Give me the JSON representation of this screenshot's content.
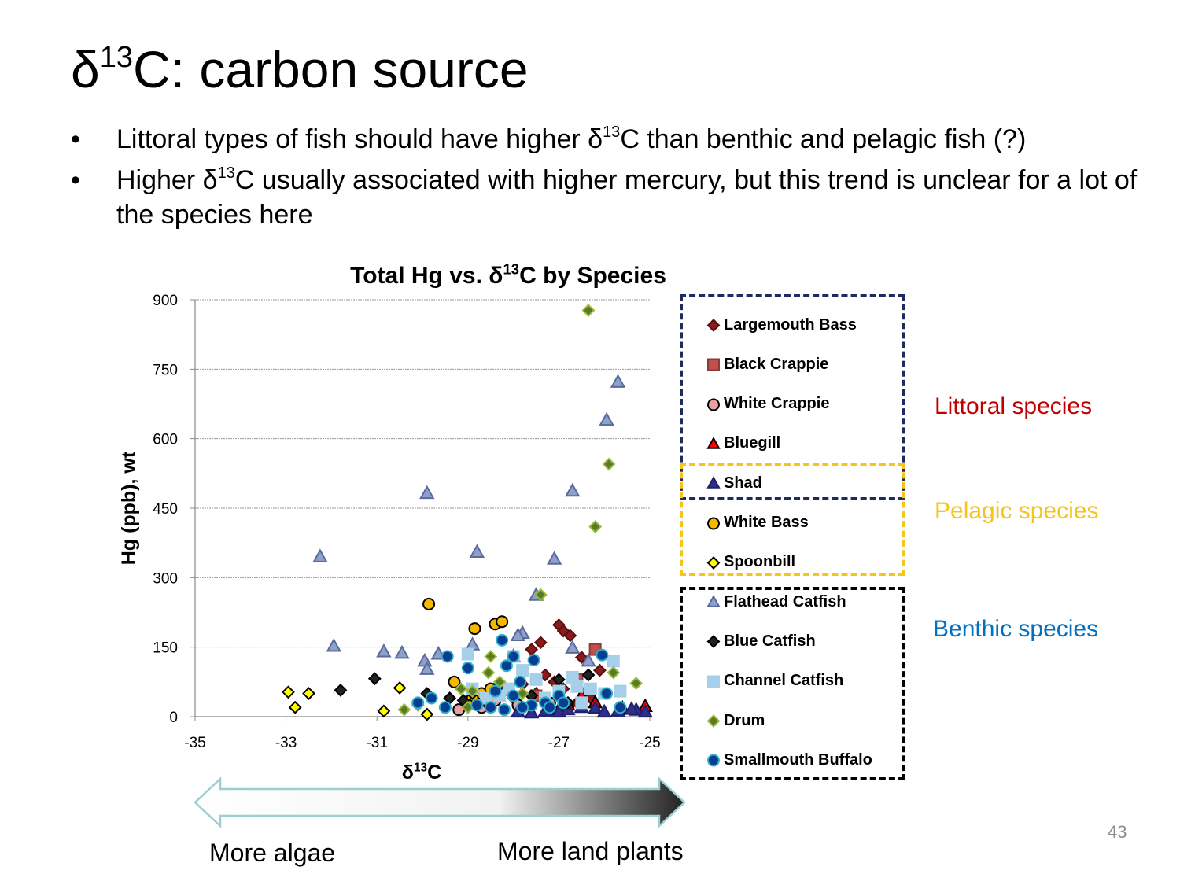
{
  "slide": {
    "title_prefix": "δ",
    "title_sup": "13",
    "title_suffix": "C: carbon source",
    "bullets": [
      {
        "before": "Littoral types of fish should have higher δ",
        "sup": "13",
        "after": "C than benthic and pelagic fish (?)"
      },
      {
        "before": "Higher δ",
        "sup": "13",
        "after": "C usually associated with higher mercury, but this trend is unclear for a lot of the species here"
      }
    ],
    "page_number": "43"
  },
  "groups": {
    "littoral": {
      "label": "Littoral species",
      "color": "#c00000"
    },
    "pelagic": {
      "label": "Pelagic species",
      "color": "#f5c518"
    },
    "benthic": {
      "label": "Benthic species",
      "color": "#0070c0"
    }
  },
  "arrow": {
    "left_label": "More algae",
    "right_label": "More land plants"
  },
  "chart_data": {
    "type": "scatter",
    "title": "Total Hg vs. δ13C by Species",
    "xlabel": "δ13C",
    "ylabel": "Hg (ppb), wt",
    "xlim": [
      -35,
      -25
    ],
    "ylim": [
      0,
      900
    ],
    "xticks": [
      "-35",
      "-33",
      "-31",
      "-29",
      "-27",
      "-25"
    ],
    "yticks": [
      "0",
      "150",
      "300",
      "450",
      "600",
      "750",
      "900"
    ],
    "grid": "horizontal",
    "series": [
      {
        "name": "Largemouth Bass",
        "marker": "diamond",
        "fill": "#8b1a1a",
        "stroke": "#5a0f0f",
        "points": [
          [
            -27.6,
            145
          ],
          [
            -27.4,
            160
          ],
          [
            -27.0,
            198
          ],
          [
            -26.9,
            185
          ],
          [
            -26.75,
            175
          ],
          [
            -26.5,
            128
          ],
          [
            -26.1,
            100
          ],
          [
            -27.3,
            90
          ],
          [
            -27.1,
            75
          ],
          [
            -26.9,
            60
          ],
          [
            -27.5,
            50
          ],
          [
            -28.0,
            40
          ],
          [
            -26.3,
            40
          ],
          [
            -26.6,
            30
          ],
          [
            -28.6,
            25
          ],
          [
            -29.0,
            20
          ],
          [
            -27.8,
            70
          ],
          [
            -26.4,
            55
          ]
        ]
      },
      {
        "name": "Black Crappie",
        "marker": "square",
        "fill": "#c0504d",
        "stroke": "#8b3a38",
        "points": [
          [
            -26.2,
            145
          ],
          [
            -26.6,
            80
          ],
          [
            -28.3,
            60
          ],
          [
            -29.0,
            30
          ],
          [
            -27.5,
            45
          ]
        ]
      },
      {
        "name": "White Crappie",
        "marker": "circle",
        "fill": "#e6a2a0",
        "stroke": "#000000",
        "points": [
          [
            -28.7,
            20
          ],
          [
            -28.4,
            35
          ],
          [
            -27.9,
            25
          ],
          [
            -29.2,
            15
          ],
          [
            -27.2,
            30
          ],
          [
            -26.8,
            20
          ]
        ]
      },
      {
        "name": "Bluegill",
        "marker": "triangle",
        "fill": "#ff0000",
        "stroke": "#000000",
        "points": [
          [
            -26.5,
            45
          ],
          [
            -26.2,
            30
          ],
          [
            -25.1,
            22
          ],
          [
            -27.0,
            15
          ],
          [
            -26.8,
            25
          ],
          [
            -25.6,
            18
          ]
        ]
      },
      {
        "name": "Shad",
        "marker": "triangle",
        "fill": "#2e2e8b",
        "stroke": "#1f1f6b",
        "points": [
          [
            -27.9,
            10
          ],
          [
            -27.6,
            8
          ],
          [
            -27.3,
            12
          ],
          [
            -27.0,
            10
          ],
          [
            -26.8,
            15
          ],
          [
            -26.5,
            20
          ],
          [
            -26.2,
            18
          ],
          [
            -25.7,
            12
          ],
          [
            -25.3,
            14
          ],
          [
            -25.1,
            10
          ],
          [
            -25.4,
            16
          ],
          [
            -26.0,
            10
          ]
        ]
      },
      {
        "name": "White Bass",
        "marker": "circle",
        "fill": "#f5b800",
        "stroke": "#000000",
        "points": [
          [
            -29.86,
            243
          ],
          [
            -28.85,
            190
          ],
          [
            -28.4,
            200
          ],
          [
            -28.25,
            205
          ],
          [
            -29.3,
            75
          ],
          [
            -28.7,
            50
          ],
          [
            -28.9,
            40
          ],
          [
            -29.0,
            25
          ],
          [
            -28.5,
            60
          ]
        ]
      },
      {
        "name": "Spoonbill",
        "marker": "diamond",
        "fill": "#ffff00",
        "stroke": "#000000",
        "points": [
          [
            -32.95,
            53
          ],
          [
            -32.5,
            50
          ],
          [
            -32.8,
            20
          ],
          [
            -30.85,
            12
          ],
          [
            -30.5,
            62
          ],
          [
            -29.9,
            5
          ]
        ]
      },
      {
        "name": "Flathead Catfish",
        "marker": "triangle",
        "fill": "#8ea0cc",
        "stroke": "#5a6a9a",
        "points": [
          [
            -25.7,
            722
          ],
          [
            -25.95,
            640
          ],
          [
            -29.9,
            482
          ],
          [
            -26.7,
            487
          ],
          [
            -28.8,
            355
          ],
          [
            -27.1,
            340
          ],
          [
            -32.25,
            345
          ],
          [
            -27.5,
            262
          ],
          [
            -31.95,
            152
          ],
          [
            -30.85,
            140
          ],
          [
            -30.45,
            137
          ],
          [
            -29.95,
            120
          ],
          [
            -29.9,
            102
          ],
          [
            -29.65,
            135
          ],
          [
            -28.9,
            155
          ],
          [
            -27.8,
            180
          ],
          [
            -27.9,
            175
          ],
          [
            -26.7,
            148
          ],
          [
            -26.35,
            120
          ],
          [
            -28.0,
            130
          ]
        ]
      },
      {
        "name": "Blue Catfish",
        "marker": "diamond",
        "fill": "#222222",
        "stroke": "#000000",
        "points": [
          [
            -31.8,
            57
          ],
          [
            -31.05,
            82
          ],
          [
            -29.4,
            40
          ],
          [
            -29.1,
            35
          ],
          [
            -28.9,
            50
          ],
          [
            -28.6,
            30
          ],
          [
            -27.0,
            80
          ],
          [
            -26.35,
            90
          ],
          [
            -29.9,
            50
          ],
          [
            -28.2,
            55
          ],
          [
            -27.6,
            45
          ],
          [
            -26.8,
            30
          ]
        ]
      },
      {
        "name": "Channel Catfish",
        "marker": "square",
        "fill": "#a6cfea",
        "stroke": "#a6cfea",
        "points": [
          [
            -29.0,
            135
          ],
          [
            -28.9,
            60
          ],
          [
            -28.6,
            40
          ],
          [
            -28.0,
            130
          ],
          [
            -27.8,
            100
          ],
          [
            -27.5,
            80
          ],
          [
            -27.0,
            55
          ],
          [
            -26.7,
            85
          ],
          [
            -26.6,
            65
          ],
          [
            -26.3,
            60
          ],
          [
            -25.8,
            120
          ],
          [
            -25.65,
            55
          ],
          [
            -26.0,
            50
          ],
          [
            -26.5,
            30
          ],
          [
            -27.3,
            40
          ],
          [
            -28.3,
            45
          ],
          [
            -28.1,
            60
          ]
        ]
      },
      {
        "name": "Drum",
        "marker": "diamond",
        "fill": "#5a7a2a",
        "stroke": "#9bbb3c",
        "points": [
          [
            -26.35,
            877
          ],
          [
            -25.9,
            545
          ],
          [
            -26.2,
            410
          ],
          [
            -27.4,
            263
          ],
          [
            -28.5,
            130
          ],
          [
            -28.55,
            95
          ],
          [
            -25.8,
            95
          ],
          [
            -25.3,
            72
          ],
          [
            -29.15,
            60
          ],
          [
            -28.9,
            55
          ],
          [
            -30.4,
            15
          ],
          [
            -30.1,
            25
          ],
          [
            -28.3,
            75
          ],
          [
            -27.8,
            50
          ],
          [
            -29.0,
            20
          ]
        ]
      },
      {
        "name": "Smallmouth Buffalo",
        "marker": "circle",
        "fill": "#0a3d8f",
        "stroke": "#2bb0cc",
        "points": [
          [
            -26.05,
            133
          ],
          [
            -28.25,
            165
          ],
          [
            -28.0,
            130
          ],
          [
            -27.55,
            122
          ],
          [
            -28.15,
            110
          ],
          [
            -29.45,
            130
          ],
          [
            -29.0,
            105
          ],
          [
            -27.85,
            75
          ],
          [
            -27.0,
            45
          ],
          [
            -26.9,
            30
          ],
          [
            -27.3,
            30
          ],
          [
            -27.6,
            25
          ],
          [
            -28.0,
            45
          ],
          [
            -28.4,
            55
          ],
          [
            -28.5,
            20
          ],
          [
            -28.2,
            15
          ],
          [
            -29.5,
            20
          ],
          [
            -29.8,
            40
          ],
          [
            -30.1,
            30
          ],
          [
            -25.95,
            50
          ],
          [
            -25.65,
            20
          ],
          [
            -28.8,
            25
          ],
          [
            -27.8,
            20
          ],
          [
            -27.2,
            20
          ]
        ]
      }
    ]
  }
}
